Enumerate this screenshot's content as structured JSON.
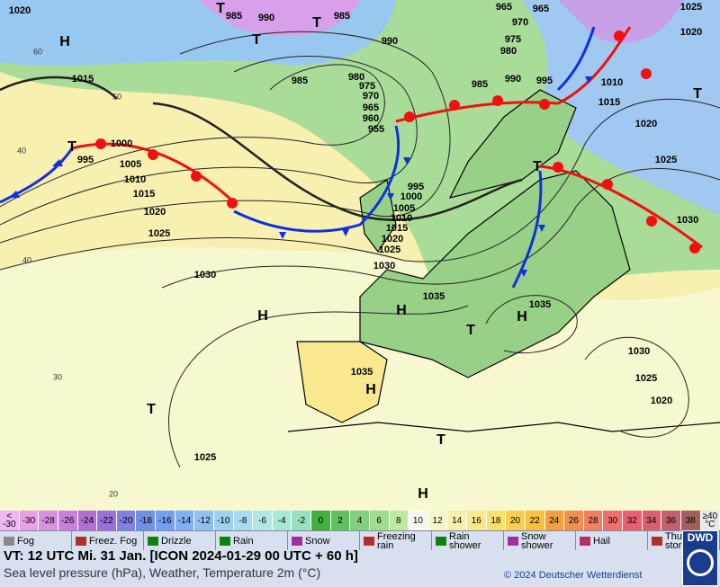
{
  "map": {
    "pressure_labels": [
      "1020",
      "985",
      "990",
      "985",
      "965",
      "965",
      "970",
      "1025",
      "1020",
      "975",
      "980",
      "990",
      "995",
      "990",
      "985",
      "980",
      "970",
      "975",
      "965",
      "960",
      "955",
      "985",
      "1010",
      "1015",
      "1020",
      "1025",
      "1030",
      "1015",
      "1000",
      "995",
      "1005",
      "1010",
      "1015",
      "1020",
      "1025",
      "995",
      "1000",
      "1005",
      "1010",
      "1015",
      "1020",
      "1025",
      "1030",
      "1030",
      "1035",
      "1035",
      "1035",
      "1030",
      "1025",
      "1020",
      "1025"
    ],
    "highs": [
      "H",
      "H",
      "H",
      "H",
      "H",
      "H"
    ],
    "lows": [
      "T",
      "T",
      "T",
      "T",
      "T",
      "T",
      "T",
      "T",
      "T"
    ],
    "latitudes": [
      "60",
      "50",
      "40",
      "40",
      "30",
      "20"
    ]
  },
  "scale": [
    {
      "label": "< -30",
      "color": "#f0b8f0"
    },
    {
      "label": -30,
      "color": "#e8a0e8"
    },
    {
      "label": -28,
      "color": "#d890e0"
    },
    {
      "label": -26,
      "color": "#c880d8"
    },
    {
      "label": -24,
      "color": "#b070d0"
    },
    {
      "label": -22,
      "color": "#9a70d8"
    },
    {
      "label": -20,
      "color": "#8080e0"
    },
    {
      "label": -18,
      "color": "#7090e8"
    },
    {
      "label": -16,
      "color": "#70a0f0"
    },
    {
      "label": -14,
      "color": "#80b0f0"
    },
    {
      "label": -12,
      "color": "#90c0f0"
    },
    {
      "label": -10,
      "color": "#a0d0f0"
    },
    {
      "label": -8,
      "color": "#a8dcf0"
    },
    {
      "label": -6,
      "color": "#b0e8e8"
    },
    {
      "label": -4,
      "color": "#a8e8d8"
    },
    {
      "label": -2,
      "color": "#98e0c0"
    },
    {
      "label": 0,
      "color": "#40b040"
    },
    {
      "label": 2,
      "color": "#60c060"
    },
    {
      "label": 4,
      "color": "#80d080"
    },
    {
      "label": 6,
      "color": "#a0dc90"
    },
    {
      "label": 8,
      "color": "#c0e8a0"
    },
    {
      "label": 10,
      "color": "#f8f8f0"
    },
    {
      "label": 12,
      "color": "#f8f8c8"
    },
    {
      "label": 14,
      "color": "#f8f0a8"
    },
    {
      "label": 16,
      "color": "#f8e890"
    },
    {
      "label": 18,
      "color": "#f8e070"
    },
    {
      "label": 20,
      "color": "#f8d050"
    },
    {
      "label": 22,
      "color": "#f8c040"
    },
    {
      "label": 24,
      "color": "#f0a040"
    },
    {
      "label": 26,
      "color": "#f09050"
    },
    {
      "label": 28,
      "color": "#f08060"
    },
    {
      "label": 30,
      "color": "#f07070"
    },
    {
      "label": 32,
      "color": "#e86070"
    },
    {
      "label": 34,
      "color": "#d86070"
    },
    {
      "label": 36,
      "color": "#c06070"
    },
    {
      "label": 38,
      "color": "#a06060"
    },
    {
      "label": "≥40 °C",
      "color": "#e8e8e8"
    }
  ],
  "legend": [
    "Fog",
    "Freez. Fog",
    "Drizzle",
    "Rain",
    "Snow",
    "Freezing rain",
    "Rain shower",
    "Snow shower",
    "Hail",
    "Thunder storm"
  ],
  "footer": {
    "valid": "VT: 12 UTC Mi.  31 Jan. [ICON 2024-01-29  00 UTC + 60 h]",
    "description": "Sea level pressure (hPa), Weather, Temperature 2m (°C)",
    "copyright": "© 2024 Deutscher Wetterdienst",
    "logo": "DWD"
  }
}
